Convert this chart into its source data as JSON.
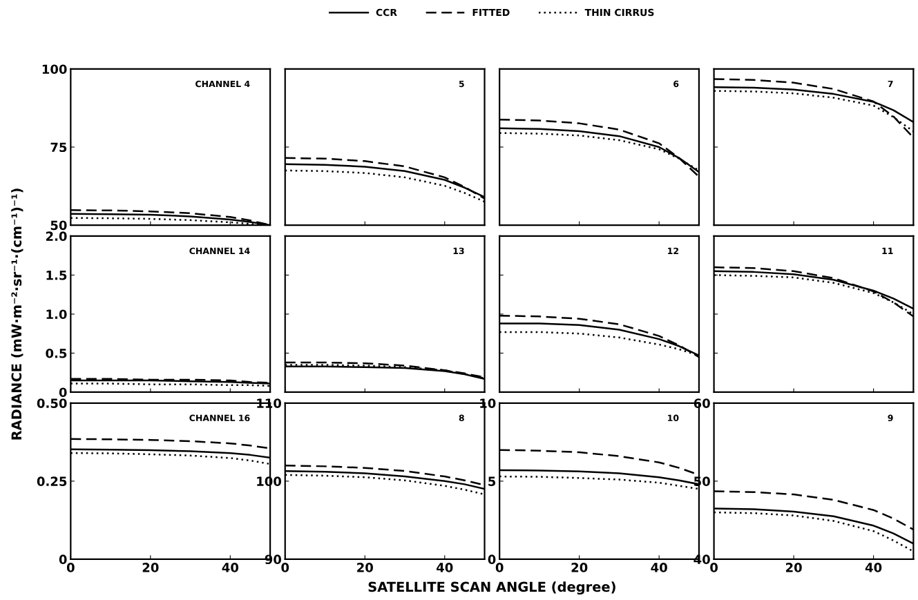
{
  "chart_data": [
    {
      "type": "line",
      "annotations": [
        "CHANNEL 4"
      ],
      "x": [
        0,
        10,
        20,
        30,
        40,
        45,
        50
      ],
      "xlim": [
        0,
        50
      ],
      "xticks": [
        0,
        20,
        40
      ],
      "ylim": [
        50,
        100
      ],
      "yticks": [
        50,
        75,
        100
      ],
      "tick_labels": "y",
      "legend": "top",
      "grid": false,
      "series": [
        {
          "name": "CCR",
          "color": "#000000",
          "line_style": "solid",
          "values": [
            53.6,
            53.5,
            53.3,
            52.8,
            51.8,
            51.0,
            50.0
          ]
        },
        {
          "name": "FITTED",
          "color": "#000000",
          "line_style": "dashed",
          "values": [
            54.8,
            54.7,
            54.4,
            53.8,
            52.6,
            51.5,
            50.0
          ]
        },
        {
          "name": "THIN CIRRUS",
          "color": "#000000",
          "line_style": "dotted",
          "values": [
            52.3,
            52.2,
            52.0,
            51.6,
            50.9,
            50.4,
            50.0
          ]
        }
      ]
    },
    {
      "type": "line",
      "annotations": [
        "5"
      ],
      "x": [
        0,
        10,
        20,
        30,
        40,
        45,
        50
      ],
      "xlim": [
        0,
        50
      ],
      "xticks": [
        0,
        20,
        40
      ],
      "ylim": [
        50,
        100
      ],
      "yticks": [
        50,
        75,
        100
      ],
      "tick_labels": false,
      "series": [
        {
          "color": "#000000",
          "line_style": "solid",
          "values": [
            69.5,
            69.3,
            68.7,
            67.3,
            64.5,
            62,
            59
          ]
        },
        {
          "color": "#000000",
          "line_style": "dashed",
          "values": [
            71.5,
            71.3,
            70.5,
            68.8,
            65.3,
            62.2,
            58.5
          ]
        },
        {
          "color": "#000000",
          "line_style": "dotted",
          "values": [
            67.5,
            67.3,
            66.7,
            65.3,
            62.6,
            60.3,
            57.5
          ]
        }
      ]
    },
    {
      "type": "line",
      "annotations": [
        "6"
      ],
      "x": [
        0,
        10,
        20,
        30,
        40,
        45,
        50
      ],
      "xlim": [
        0,
        50
      ],
      "xticks": [
        0,
        20,
        40
      ],
      "ylim": [
        50,
        100
      ],
      "yticks": [
        50,
        75,
        100
      ],
      "tick_labels": false,
      "series": [
        {
          "color": "#000000",
          "line_style": "solid",
          "values": [
            81,
            80.8,
            80.1,
            78.5,
            75,
            71.5,
            67
          ]
        },
        {
          "color": "#000000",
          "line_style": "dashed",
          "values": [
            83.8,
            83.5,
            82.6,
            80.6,
            76.2,
            71.5,
            65.5
          ]
        },
        {
          "color": "#000000",
          "line_style": "dotted",
          "values": [
            79.5,
            79.3,
            78.7,
            77.2,
            74.3,
            71.3,
            67.5
          ]
        }
      ]
    },
    {
      "type": "line",
      "annotations": [
        "7"
      ],
      "x": [
        0,
        10,
        20,
        30,
        40,
        45,
        50
      ],
      "xlim": [
        0,
        50
      ],
      "xticks": [
        0,
        20,
        40
      ],
      "ylim": [
        50,
        100
      ],
      "yticks": [
        50,
        75,
        100
      ],
      "tick_labels": false,
      "series": [
        {
          "color": "#000000",
          "line_style": "solid",
          "values": [
            94.2,
            94.0,
            93.4,
            92,
            89.5,
            86.8,
            83
          ]
        },
        {
          "color": "#000000",
          "line_style": "dashed",
          "values": [
            96.8,
            96.5,
            95.6,
            93.6,
            89.6,
            84.8,
            78
          ]
        },
        {
          "color": "#000000",
          "line_style": "dotted",
          "values": [
            93,
            92.8,
            92.2,
            90.8,
            88.3,
            84.6,
            80
          ]
        }
      ]
    },
    {
      "type": "line",
      "ylabel": "RADIANCE (mW·m⁻²·sr⁻¹·(cm⁻¹)⁻¹)",
      "annotations": [
        "CHANNEL 14"
      ],
      "x": [
        0,
        10,
        20,
        30,
        40,
        45,
        50
      ],
      "xlim": [
        0,
        50
      ],
      "xticks": [
        0,
        20,
        40
      ],
      "ylim": [
        0,
        2
      ],
      "yticks": [
        0,
        0.5,
        {
          "value": 1,
          "label": "1.0"
        },
        1.5,
        {
          "value": 2,
          "label": "2.0"
        }
      ],
      "tick_labels": "y",
      "series": [
        {
          "color": "#000000",
          "line_style": "solid",
          "values": [
            0.15,
            0.15,
            0.15,
            0.14,
            0.13,
            0.12,
            0.11
          ]
        },
        {
          "color": "#000000",
          "line_style": "dashed",
          "values": [
            0.17,
            0.17,
            0.16,
            0.16,
            0.15,
            0.13,
            0.12
          ]
        },
        {
          "color": "#000000",
          "line_style": "dotted",
          "values": [
            0.11,
            0.11,
            0.1,
            0.1,
            0.09,
            0.09,
            0.08
          ]
        }
      ]
    },
    {
      "type": "line",
      "annotations": [
        "13"
      ],
      "x": [
        0,
        10,
        20,
        30,
        40,
        45,
        50
      ],
      "xlim": [
        0,
        50
      ],
      "xticks": [
        0,
        20,
        40
      ],
      "ylim": [
        0,
        2
      ],
      "yticks": [
        0,
        0.5,
        1,
        1.5,
        2
      ],
      "tick_labels": false,
      "series": [
        {
          "color": "#000000",
          "line_style": "solid",
          "values": [
            0.33,
            0.33,
            0.32,
            0.31,
            0.27,
            0.23,
            0.17
          ]
        },
        {
          "color": "#000000",
          "line_style": "dashed",
          "values": [
            0.38,
            0.38,
            0.37,
            0.34,
            0.28,
            0.24,
            0.19
          ]
        },
        {
          "color": "#000000",
          "line_style": "dotted",
          "values": [
            0.35,
            0.35,
            0.34,
            0.32,
            0.28,
            0.23,
            0.18
          ]
        }
      ]
    },
    {
      "type": "line",
      "annotations": [
        "12"
      ],
      "x": [
        0,
        10,
        20,
        30,
        40,
        45,
        50
      ],
      "xlim": [
        0,
        50
      ],
      "xticks": [
        0,
        20,
        40
      ],
      "ylim": [
        0,
        2
      ],
      "yticks": [
        0,
        0.5,
        1,
        1.5,
        2
      ],
      "tick_labels": false,
      "series": [
        {
          "color": "#000000",
          "line_style": "solid",
          "values": [
            0.88,
            0.88,
            0.86,
            0.8,
            0.68,
            0.59,
            0.47
          ]
        },
        {
          "color": "#000000",
          "line_style": "dashed",
          "values": [
            0.98,
            0.97,
            0.94,
            0.87,
            0.72,
            0.6,
            0.45
          ]
        },
        {
          "color": "#000000",
          "line_style": "dotted",
          "values": [
            0.77,
            0.77,
            0.75,
            0.7,
            0.61,
            0.55,
            0.47
          ]
        }
      ]
    },
    {
      "type": "line",
      "annotations": [
        "11"
      ],
      "x": [
        0,
        10,
        20,
        30,
        40,
        45,
        50
      ],
      "xlim": [
        0,
        50
      ],
      "xticks": [
        0,
        20,
        40
      ],
      "ylim": [
        0,
        2
      ],
      "yticks": [
        0,
        0.5,
        1,
        1.5,
        2
      ],
      "tick_labels": false,
      "series": [
        {
          "color": "#000000",
          "line_style": "solid",
          "values": [
            1.55,
            1.54,
            1.51,
            1.44,
            1.3,
            1.2,
            1.07
          ]
        },
        {
          "color": "#000000",
          "line_style": "dashed",
          "values": [
            1.6,
            1.59,
            1.55,
            1.46,
            1.29,
            1.15,
            0.97
          ]
        },
        {
          "color": "#000000",
          "line_style": "dotted",
          "values": [
            1.5,
            1.49,
            1.47,
            1.4,
            1.27,
            1.15,
            1.0
          ]
        }
      ]
    },
    {
      "type": "line",
      "annotations": [
        "CHANNEL 16"
      ],
      "x": [
        0,
        10,
        20,
        30,
        40,
        45,
        50
      ],
      "xlim": [
        0,
        50
      ],
      "xticks": [
        0,
        20,
        40
      ],
      "ylim": [
        0,
        0.5
      ],
      "yticks": [
        0,
        0.25,
        {
          "value": 0.5,
          "label": "0.50"
        }
      ],
      "series": [
        {
          "color": "#000000",
          "line_style": "solid",
          "values": [
            0.352,
            0.351,
            0.349,
            0.346,
            0.34,
            0.334,
            0.325
          ]
        },
        {
          "color": "#000000",
          "line_style": "dashed",
          "values": [
            0.385,
            0.384,
            0.382,
            0.378,
            0.371,
            0.364,
            0.355
          ]
        },
        {
          "color": "#000000",
          "line_style": "dotted",
          "values": [
            0.34,
            0.339,
            0.336,
            0.332,
            0.324,
            0.316,
            0.305
          ]
        }
      ]
    },
    {
      "type": "line",
      "xlabel": "SATELLITE SCAN ANGLE (degree)",
      "annotations": [
        "8"
      ],
      "x": [
        0,
        10,
        20,
        30,
        40,
        45,
        50
      ],
      "xlim": [
        0,
        50
      ],
      "xticks": [
        0,
        20,
        40
      ],
      "ylim": [
        90,
        110
      ],
      "yticks": [
        90,
        100,
        110
      ],
      "series": [
        {
          "color": "#000000",
          "line_style": "solid",
          "values": [
            101.3,
            101.2,
            101.0,
            100.6,
            100,
            99.6,
            99
          ]
        },
        {
          "color": "#000000",
          "line_style": "dashed",
          "values": [
            102,
            101.9,
            101.7,
            101.3,
            100.6,
            100.1,
            99.5
          ]
        },
        {
          "color": "#000000",
          "line_style": "dotted",
          "values": [
            100.8,
            100.7,
            100.5,
            100.1,
            99.4,
            98.9,
            98.3
          ]
        }
      ]
    },
    {
      "type": "line",
      "annotations": [
        "10"
      ],
      "x": [
        0,
        10,
        20,
        30,
        40,
        45,
        50
      ],
      "xlim": [
        0,
        50
      ],
      "xticks": [
        0,
        20,
        40
      ],
      "ylim": [
        0,
        10
      ],
      "yticks": [
        0,
        5,
        10
      ],
      "series": [
        {
          "color": "#000000",
          "line_style": "solid",
          "values": [
            5.7,
            5.68,
            5.62,
            5.5,
            5.25,
            5.05,
            4.8
          ]
        },
        {
          "color": "#000000",
          "line_style": "dashed",
          "values": [
            7.0,
            6.95,
            6.85,
            6.6,
            6.2,
            5.85,
            5.4
          ]
        },
        {
          "color": "#000000",
          "line_style": "dotted",
          "values": [
            5.3,
            5.28,
            5.2,
            5.1,
            4.9,
            4.7,
            4.5
          ]
        }
      ]
    },
    {
      "type": "line",
      "annotations": [
        "9"
      ],
      "x": [
        0,
        10,
        20,
        30,
        40,
        45,
        50
      ],
      "xlim": [
        0,
        50
      ],
      "xticks": [
        0,
        20,
        40
      ],
      "ylim": [
        40,
        60
      ],
      "yticks": [
        40,
        50,
        60
      ],
      "series": [
        {
          "color": "#000000",
          "line_style": "solid",
          "values": [
            46.5,
            46.4,
            46.1,
            45.5,
            44.3,
            43.3,
            42
          ]
        },
        {
          "color": "#000000",
          "line_style": "dashed",
          "values": [
            48.7,
            48.6,
            48.3,
            47.6,
            46.3,
            45.2,
            43.8
          ]
        },
        {
          "color": "#000000",
          "line_style": "dotted",
          "values": [
            46,
            45.9,
            45.6,
            44.9,
            43.6,
            42.4,
            41
          ]
        }
      ]
    }
  ]
}
